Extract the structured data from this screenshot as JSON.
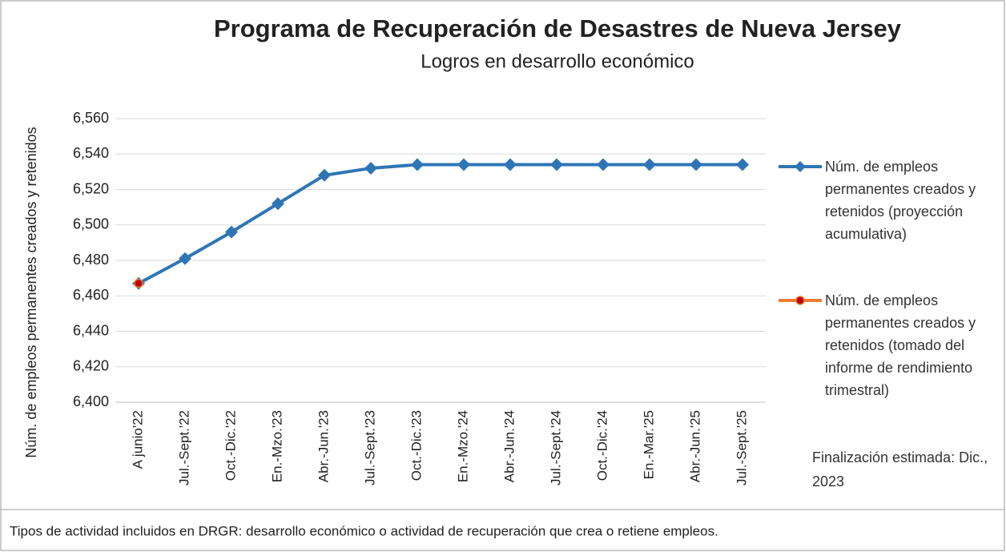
{
  "chart_data": {
    "type": "line",
    "title": "Programa de Recuperación de Desastres de Nueva Jersey",
    "subtitle": "Logros en desarrollo económico",
    "y_label": "Núm. de empleos permanentes creados y retenidos",
    "categories": [
      "A junio'22",
      "Jul.-Sept.'22",
      "Oct.-Dic.'22",
      "En.-Mzo.'23",
      "Abr.-Jun.'23",
      "Jul.-Sept.'23",
      "Oct.-Dic.'23",
      "En.-Mzo.'24",
      "Abr.-Jun.'24",
      "Jul.-Sept.'24",
      "Oct.-Dic.'24",
      "En.-Mar.'25",
      "Abr.-Jun.'25",
      "Jul.-Sept.'25"
    ],
    "series": [
      {
        "name": "Núm. de empleos permanentes creados y retenidos (proyección acumulativa)",
        "color": "#2e75b6",
        "marker_color": "#2e75b6",
        "values": [
          6467,
          6481,
          6496,
          6512,
          6528,
          6532,
          6534,
          6534,
          6534,
          6534,
          6534,
          6534,
          6534,
          6534
        ]
      },
      {
        "name": "Núm. de empleos permanentes creados y retenidos (tomado del informe de rendimiento trimestral)",
        "color": "#ed7d31",
        "marker_color": "#c00000",
        "values": [
          6467,
          null,
          null,
          null,
          null,
          null,
          null,
          null,
          null,
          null,
          null,
          null,
          null,
          null
        ]
      }
    ],
    "ylim": [
      6400,
      6560
    ],
    "yticks": [
      {
        "value": 6400,
        "label": "6,400"
      },
      {
        "value": 6420,
        "label": "6,420"
      },
      {
        "value": 6440,
        "label": "6,440"
      },
      {
        "value": 6460,
        "label": "6,460"
      },
      {
        "value": 6480,
        "label": "6,480"
      },
      {
        "value": 6500,
        "label": "6,500"
      },
      {
        "value": 6520,
        "label": "6,520"
      },
      {
        "value": 6540,
        "label": "6,540"
      },
      {
        "value": 6560,
        "label": "6,560"
      }
    ],
    "grid": true,
    "legend": "right",
    "annotation": "Finalización estimada: Dic., 2023",
    "footnote": "Tipos de actividad incluidos en DRGR: desarrollo económico o actividad de recuperación que crea o retiene empleos."
  }
}
